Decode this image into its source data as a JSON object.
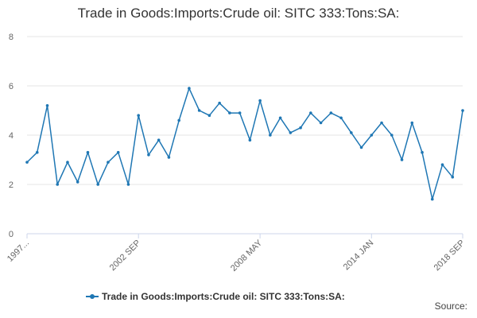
{
  "chart_data": {
    "type": "line",
    "title": "Trade in Goods:Imports:Crude oil: SITC 333:Tons:SA:",
    "xlabel": "",
    "ylabel": "",
    "ylim": [
      0,
      8
    ],
    "yticks": [
      0,
      2,
      4,
      6,
      8
    ],
    "grid": true,
    "legend_position": "bottom",
    "x_tick_labels": [
      "1997...",
      "2002 SEP",
      "2008 MAY",
      "2014 JAN",
      "2018 SEP"
    ],
    "x": [
      "1997 JAN",
      "1997 JUL",
      "1998 JAN",
      "1998 JUL",
      "1999 JAN",
      "1999 JUL",
      "2000 JAN",
      "2000 JUL",
      "2001 JAN",
      "2001 JUL",
      "2002 JAN",
      "2002 SEP",
      "2003 JAN",
      "2003 JUL",
      "2004 JAN",
      "2004 JUL",
      "2005 JAN",
      "2005 JUL",
      "2006 JAN",
      "2006 JUL",
      "2007 JAN",
      "2007 JUL",
      "2008 JAN",
      "2008 MAY",
      "2009 JAN",
      "2009 JUL",
      "2010 JAN",
      "2010 JUL",
      "2011 JAN",
      "2011 JUL",
      "2012 JAN",
      "2012 JUL",
      "2013 JAN",
      "2013 JUL",
      "2014 JAN",
      "2014 JUL",
      "2015 JAN",
      "2015 JUL",
      "2016 JAN",
      "2016 JUL",
      "2017 JAN",
      "2017 JUL",
      "2018 JAN",
      "2018 SEP"
    ],
    "series": [
      {
        "name": "Trade in Goods:Imports:Crude oil: SITC 333:Tons:SA:",
        "color": "#1f77b4",
        "values": [
          2.9,
          3.3,
          5.2,
          2.0,
          2.9,
          2.1,
          3.3,
          2.0,
          2.9,
          3.3,
          2.0,
          4.8,
          3.2,
          3.8,
          3.1,
          4.6,
          5.9,
          5.0,
          4.8,
          5.3,
          4.9,
          4.9,
          3.8,
          5.4,
          4.0,
          4.7,
          4.1,
          4.3,
          4.9,
          4.5,
          4.9,
          4.7,
          4.1,
          3.5,
          4.0,
          4.5,
          4.0,
          3.0,
          4.5,
          3.3,
          1.4,
          2.8,
          2.3,
          5.0
        ]
      }
    ]
  },
  "source_label": "Source:"
}
